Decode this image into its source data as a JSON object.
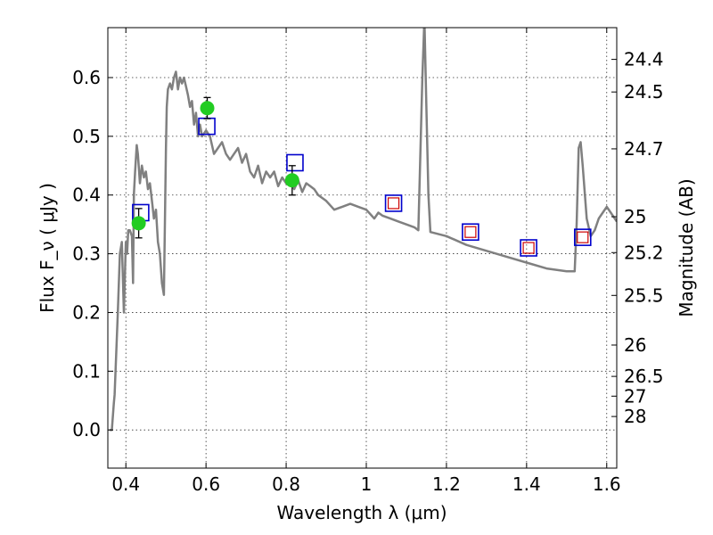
{
  "chart_data": {
    "type": "scatter",
    "title": "",
    "xlabel": "Wavelength  λ (μm)",
    "ylabel": "Flux  F_ν  ( μJy )",
    "ylabel_right": "Magnitude (AB)",
    "xlim": [
      0.355,
      1.625
    ],
    "ylim": [
      -0.065,
      0.685
    ],
    "xticks": [
      0.4,
      0.6,
      0.8,
      1.0,
      1.2,
      1.4,
      1.6
    ],
    "xtick_labels": [
      "0.4",
      "0.6",
      "0.8",
      "1",
      "1.2",
      "1.4",
      "1.6"
    ],
    "yticks": [
      0.0,
      0.1,
      0.2,
      0.3,
      0.4,
      0.5,
      0.6
    ],
    "ytick_labels": [
      "0.0",
      "0.1",
      "0.2",
      "0.3",
      "0.4",
      "0.5",
      "0.6"
    ],
    "right_ticks": [
      "24.4",
      "24.5",
      "24.7",
      "25",
      "25.2",
      "25.5",
      "26",
      "26.5",
      "27",
      "28"
    ],
    "grid": true,
    "colors": {
      "model": "#808080",
      "observed": "#22cc22",
      "model_box": "#0000cc",
      "model_box_inner": "#cc0000",
      "errorbar": "#000000"
    },
    "series": [
      {
        "style": "line",
        "x": [
          0.36,
          0.365,
          0.37,
          0.372,
          0.38,
          0.385,
          0.39,
          0.395,
          0.4,
          0.403,
          0.406,
          0.41,
          0.415,
          0.418,
          0.42,
          0.423,
          0.427,
          0.43,
          0.435,
          0.44,
          0.445,
          0.45,
          0.455,
          0.46,
          0.465,
          0.47,
          0.475,
          0.48,
          0.485,
          0.49,
          0.495,
          0.5,
          0.502,
          0.505,
          0.51,
          0.515,
          0.52,
          0.525,
          0.53,
          0.535,
          0.54,
          0.545,
          0.55,
          0.555,
          0.56,
          0.565,
          0.57,
          0.575,
          0.58,
          0.585,
          0.59,
          0.6,
          0.61,
          0.62,
          0.63,
          0.64,
          0.65,
          0.66,
          0.67,
          0.68,
          0.69,
          0.7,
          0.71,
          0.72,
          0.73,
          0.74,
          0.75,
          0.76,
          0.77,
          0.78,
          0.79,
          0.8,
          0.81,
          0.82,
          0.83,
          0.84,
          0.85,
          0.86,
          0.87,
          0.88,
          0.89,
          0.9,
          0.92,
          0.94,
          0.96,
          0.98,
          1.0,
          1.02,
          1.03,
          1.04,
          1.06,
          1.08,
          1.1,
          1.12,
          1.13,
          1.14,
          1.145,
          1.15,
          1.155,
          1.16,
          1.2,
          1.25,
          1.3,
          1.35,
          1.4,
          1.45,
          1.5,
          1.52,
          1.525,
          1.53,
          1.535,
          1.54,
          1.55,
          1.56,
          1.57,
          1.58,
          1.59,
          1.6,
          1.61,
          1.625
        ],
        "y": [
          0.0,
          0.0,
          0.045,
          0.06,
          0.2,
          0.3,
          0.32,
          0.2,
          0.32,
          0.3,
          0.34,
          0.34,
          0.33,
          0.25,
          0.4,
          0.44,
          0.485,
          0.47,
          0.42,
          0.45,
          0.43,
          0.44,
          0.41,
          0.42,
          0.39,
          0.36,
          0.375,
          0.32,
          0.3,
          0.25,
          0.23,
          0.48,
          0.55,
          0.58,
          0.59,
          0.58,
          0.6,
          0.61,
          0.58,
          0.6,
          0.59,
          0.6,
          0.585,
          0.57,
          0.55,
          0.56,
          0.52,
          0.54,
          0.5,
          0.52,
          0.5,
          0.51,
          0.5,
          0.47,
          0.48,
          0.49,
          0.47,
          0.46,
          0.47,
          0.48,
          0.455,
          0.47,
          0.44,
          0.43,
          0.45,
          0.42,
          0.44,
          0.43,
          0.44,
          0.415,
          0.43,
          0.42,
          0.43,
          0.41,
          0.425,
          0.405,
          0.42,
          0.415,
          0.41,
          0.4,
          0.395,
          0.39,
          0.375,
          0.38,
          0.385,
          0.38,
          0.375,
          0.36,
          0.37,
          0.365,
          0.36,
          0.355,
          0.35,
          0.345,
          0.34,
          0.6,
          0.7,
          0.55,
          0.4,
          0.337,
          0.33,
          0.315,
          0.305,
          0.295,
          0.285,
          0.275,
          0.27,
          0.27,
          0.35,
          0.48,
          0.49,
          0.45,
          0.36,
          0.33,
          0.34,
          0.36,
          0.37,
          0.38,
          0.37,
          0.355
        ]
      },
      {
        "style": "points",
        "x": [
          0.432,
          0.603,
          0.815
        ],
        "y": [
          0.352,
          0.548,
          0.425
        ],
        "yerr": [
          0.025,
          0.018,
          0.025
        ]
      },
      {
        "style": "open-squares",
        "x": [
          0.437,
          0.602,
          0.822,
          1.068,
          1.26,
          1.405,
          1.54
        ],
        "y": [
          0.37,
          0.517,
          0.455,
          0.386,
          0.337,
          0.31,
          0.328
        ]
      }
    ]
  }
}
